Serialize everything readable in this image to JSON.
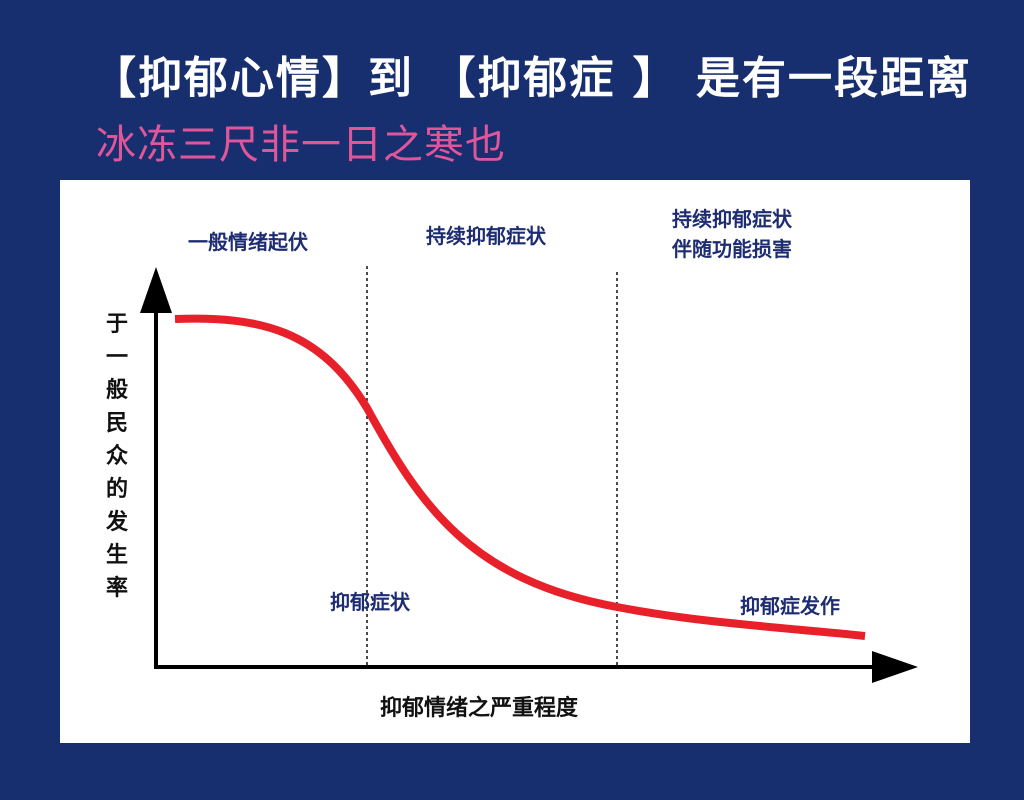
{
  "header": {
    "title": "【抑郁心情】到 【抑郁症 】 是有一段距离",
    "subtitle": "冰冻三尺非一日之寒也"
  },
  "diagram": {
    "y_axis_label": "于一般民众的发生率",
    "x_axis_label": "抑郁情绪之严重程度",
    "zones": [
      {
        "label": "一般情绪起伏"
      },
      {
        "label": "持续抑郁症状"
      },
      {
        "label": "持续抑郁症状\n伴随功能损害"
      }
    ],
    "points": [
      {
        "label": "抑郁症状"
      },
      {
        "label": "抑郁症发作"
      }
    ],
    "colors": {
      "curve": "#e8202a",
      "background": "#172f6e",
      "accent": "#e0569b"
    }
  }
}
